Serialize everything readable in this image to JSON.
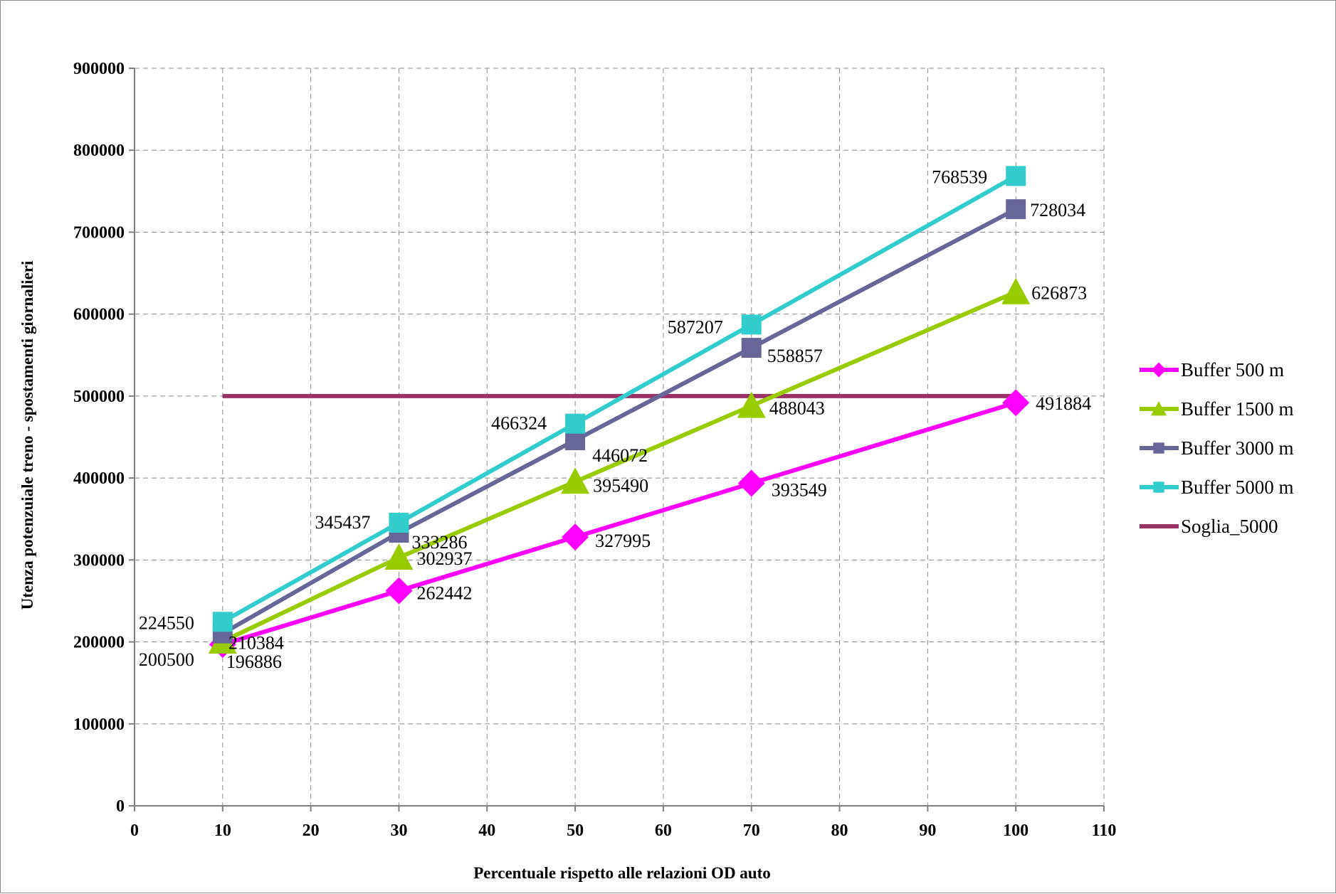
{
  "chart_data": {
    "type": "line",
    "title": "",
    "xlabel": "Percentuale rispetto alle relazioni OD auto",
    "ylabel": "Utenza potenzuiale treno - spostamenti giornalieri",
    "xlim": [
      0,
      110
    ],
    "ylim": [
      0,
      900000
    ],
    "x_ticks": [
      0,
      10,
      20,
      30,
      40,
      50,
      60,
      70,
      80,
      90,
      100,
      110
    ],
    "y_ticks": [
      0,
      100000,
      200000,
      300000,
      400000,
      500000,
      600000,
      700000,
      800000,
      900000
    ],
    "grid": true,
    "legend_position": "right",
    "series": [
      {
        "name": "Buffer 500 m",
        "color": "#ff00ff",
        "marker": "diamond",
        "x": [
          10,
          30,
          50,
          70,
          100
        ],
        "values": [
          196886,
          262442,
          327995,
          393549,
          491884
        ],
        "labels": [
          "196886",
          "262442",
          "327995",
          "393549",
          "491884"
        ]
      },
      {
        "name": "Buffer 1500 m",
        "color": "#99cc00",
        "marker": "triangle",
        "x": [
          10,
          30,
          50,
          70,
          100
        ],
        "values": [
          200500,
          302937,
          395490,
          488043,
          626873
        ],
        "labels": [
          "200500",
          "302937",
          "395490",
          "488043",
          "626873"
        ]
      },
      {
        "name": "Buffer 3000 m",
        "color": "#666699",
        "marker": "square",
        "x": [
          10,
          30,
          50,
          70,
          100
        ],
        "values": [
          210384,
          333286,
          446072,
          558857,
          728034
        ],
        "labels": [
          "210384",
          "333286",
          "446072",
          "558857",
          "728034"
        ]
      },
      {
        "name": "Buffer 5000 m",
        "color": "#33cccc",
        "marker": "square",
        "x": [
          10,
          30,
          50,
          70,
          100
        ],
        "values": [
          224550,
          345437,
          466324,
          587207,
          768539
        ],
        "labels": [
          "224550",
          "345437",
          "466324",
          "587207",
          "768539"
        ]
      },
      {
        "name": "Soglia_5000",
        "color": "#993366",
        "marker": "none",
        "x": [
          10,
          100
        ],
        "values": [
          500000,
          500000
        ],
        "labels": []
      }
    ]
  }
}
